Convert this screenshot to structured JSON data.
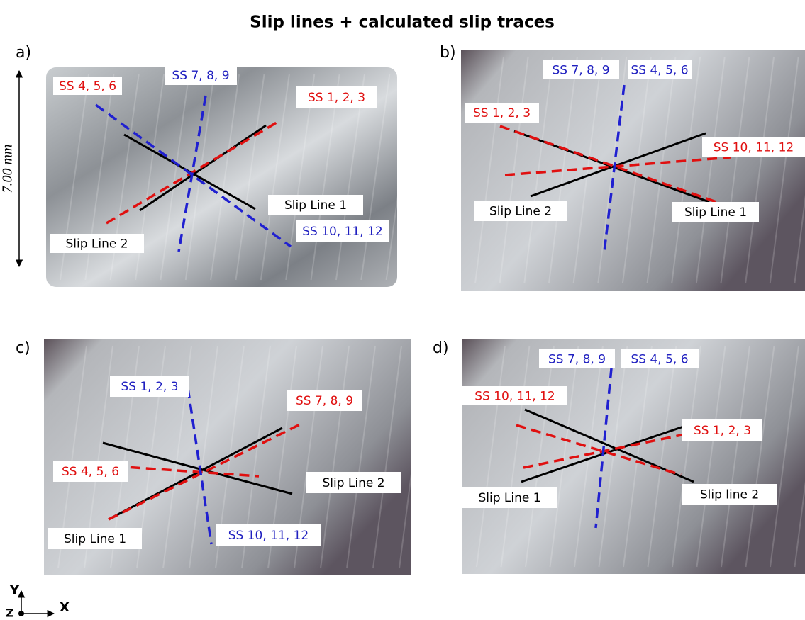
{
  "title": "Slip lines + calculated slip traces",
  "scale_label": "7.00 mm",
  "axes": {
    "y": "Y",
    "x": "X",
    "z": "Z"
  },
  "panels": [
    {
      "label": "a)",
      "annotations": [
        {
          "text": "SS 4, 5, 6",
          "color": "#e01010"
        },
        {
          "text": "SS 7, 8, 9",
          "color": "#2020c0"
        },
        {
          "text": "SS 1, 2, 3",
          "color": "#e01010"
        },
        {
          "text": "Slip Line 1",
          "color": "#000000"
        },
        {
          "text": "SS 10, 11, 12",
          "color": "#2020c0"
        },
        {
          "text": "Slip Line 2",
          "color": "#000000"
        }
      ]
    },
    {
      "label": "b)",
      "annotations": [
        {
          "text": "SS 7, 8, 9",
          "color": "#2020c0"
        },
        {
          "text": "SS 4, 5, 6",
          "color": "#2020c0"
        },
        {
          "text": "SS 1, 2, 3",
          "color": "#e01010"
        },
        {
          "text": "SS 10, 11, 12",
          "color": "#e01010"
        },
        {
          "text": "Slip Line 2",
          "color": "#000000"
        },
        {
          "text": "Slip Line 1",
          "color": "#000000"
        }
      ]
    },
    {
      "label": "c)",
      "annotations": [
        {
          "text": "SS 1, 2, 3",
          "color": "#2020c0"
        },
        {
          "text": "SS 7, 8, 9",
          "color": "#e01010"
        },
        {
          "text": "SS 4, 5, 6",
          "color": "#e01010"
        },
        {
          "text": "Slip Line 2",
          "color": "#000000"
        },
        {
          "text": "Slip Line 1",
          "color": "#000000"
        },
        {
          "text": "SS 10, 11, 12",
          "color": "#2020c0"
        }
      ]
    },
    {
      "label": "d)",
      "annotations": [
        {
          "text": "SS 7, 8, 9",
          "color": "#2020c0"
        },
        {
          "text": "SS 4, 5, 6",
          "color": "#2020c0"
        },
        {
          "text": "SS 10, 11, 12",
          "color": "#e01010"
        },
        {
          "text": "SS 1, 2, 3",
          "color": "#e01010"
        },
        {
          "text": "Slip Line 1",
          "color": "#000000"
        },
        {
          "text": "Slip line 2",
          "color": "#000000"
        }
      ]
    }
  ]
}
